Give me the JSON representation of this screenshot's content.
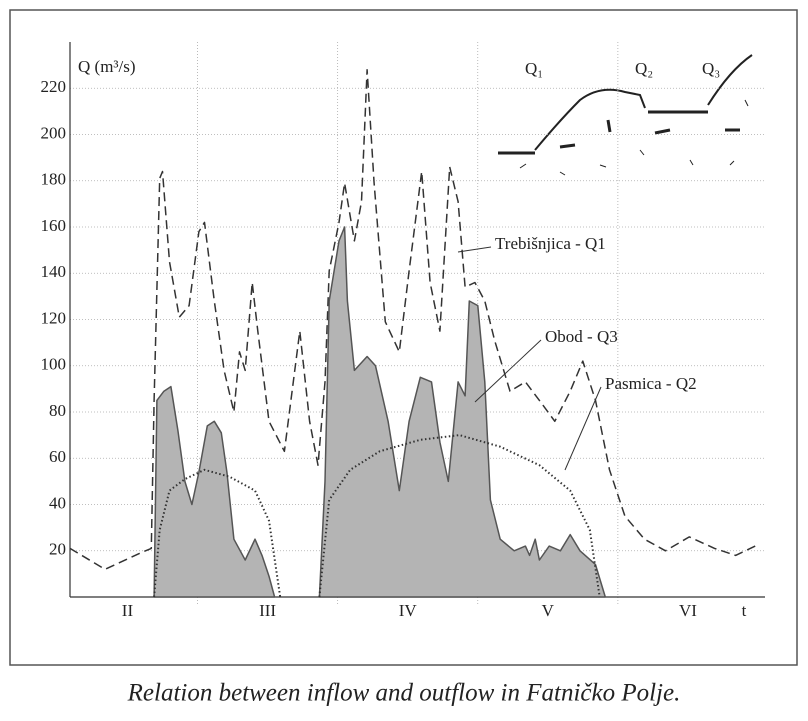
{
  "chart_data": {
    "type": "line",
    "y_label": "Q (m³/s)",
    "caption": "Relation between inflow and outflow in Fatničko Polje.",
    "inset_labels": [
      "Q₁",
      "Q₂",
      "Q₃"
    ],
    "xlim": [
      0.09,
      5.05
    ],
    "xticks": [
      {
        "value": 0.5,
        "label": "II"
      },
      {
        "value": 1.5,
        "label": "III"
      },
      {
        "value": 2.5,
        "label": "IV"
      },
      {
        "value": 3.5,
        "label": "V"
      },
      {
        "value": 4.5,
        "label": "VI"
      },
      {
        "value": 4.9,
        "label": "t"
      }
    ],
    "xgrid": [
      1,
      2,
      3,
      4
    ],
    "ylim": [
      0,
      240
    ],
    "yticks": [
      20,
      40,
      60,
      80,
      100,
      120,
      140,
      160,
      180,
      200,
      220
    ],
    "grid": true,
    "series": [
      {
        "name": "Trebišnjica - Q1",
        "color": "#333333",
        "style": "dashed",
        "x": [
          0.09,
          0.34,
          0.59,
          0.67,
          0.69,
          0.73,
          0.75,
          0.8,
          0.87,
          0.94,
          1.01,
          1.05,
          1.12,
          1.19,
          1.26,
          1.3,
          1.34,
          1.39,
          1.43,
          1.51,
          1.62,
          1.73,
          1.8,
          1.86,
          1.91,
          1.94,
          2.01,
          2.05,
          2.12,
          2.17,
          2.21,
          2.26,
          2.34,
          2.44,
          2.51,
          2.6,
          2.66,
          2.73,
          2.8,
          2.86,
          2.91,
          2.98,
          3.05,
          3.12,
          3.23,
          3.34,
          3.44,
          3.55,
          3.66,
          3.75,
          3.84,
          3.94,
          4.05,
          4.19,
          4.34,
          4.51,
          4.69,
          4.84,
          4.98
        ],
        "values": [
          21,
          12,
          19,
          21,
          85,
          181,
          184,
          145,
          121,
          126,
          158,
          162,
          128,
          98,
          80,
          106,
          98,
          136,
          115,
          76,
          63,
          115,
          76,
          57,
          93,
          141,
          162,
          179,
          154,
          171,
          228,
          179,
          119,
          106,
          141,
          184,
          136,
          115,
          186,
          171,
          134,
          136,
          128,
          111,
          89,
          93,
          85,
          76,
          89,
          102,
          85,
          55,
          35,
          25,
          20,
          26,
          21,
          18,
          22
        ]
      },
      {
        "name": "Obod - Q3",
        "color": "#555555",
        "fill": "#b4b4b4",
        "style": "area",
        "x": [
          0.69,
          0.71,
          0.76,
          0.81,
          0.86,
          0.91,
          0.96,
          1.01,
          1.07,
          1.12,
          1.17,
          1.21,
          1.26,
          1.34,
          1.41,
          1.46,
          1.51,
          1.55,
          1.7,
          1.87,
          1.91,
          1.94,
          2.01,
          2.05,
          2.07,
          2.12,
          2.21,
          2.27,
          2.36,
          2.44,
          2.51,
          2.59,
          2.67,
          2.73,
          2.79,
          2.86,
          2.91,
          2.94,
          3.0,
          3.05,
          3.09,
          3.16,
          3.26,
          3.34,
          3.37,
          3.41,
          3.44,
          3.51,
          3.59,
          3.66,
          3.73,
          3.84,
          3.91
        ],
        "values": [
          0,
          85,
          89,
          91,
          72,
          50,
          40,
          54,
          74,
          76,
          71,
          54,
          25,
          16,
          25,
          18,
          9,
          0,
          null,
          0,
          50,
          128,
          154,
          160,
          128,
          98,
          104,
          100,
          76,
          46,
          76,
          95,
          93,
          67,
          50,
          93,
          87,
          128,
          126,
          93,
          42,
          25,
          20,
          22,
          18,
          25,
          16,
          22,
          20,
          27,
          20,
          14,
          0
        ]
      },
      {
        "name": "Pasmica - Q2",
        "color": "#333333",
        "style": "dotted",
        "x": [
          0.69,
          0.73,
          0.8,
          0.91,
          1.05,
          1.23,
          1.41,
          1.51,
          1.59,
          1.7,
          1.87,
          1.94,
          2.09,
          2.3,
          2.59,
          2.87,
          3.16,
          3.44,
          3.66,
          3.8,
          3.87
        ],
        "values": [
          0,
          29,
          46,
          51,
          55,
          52,
          46,
          33,
          0,
          null,
          0,
          42,
          55,
          63,
          68,
          70,
          65,
          57,
          46,
          29,
          0
        ]
      }
    ]
  }
}
